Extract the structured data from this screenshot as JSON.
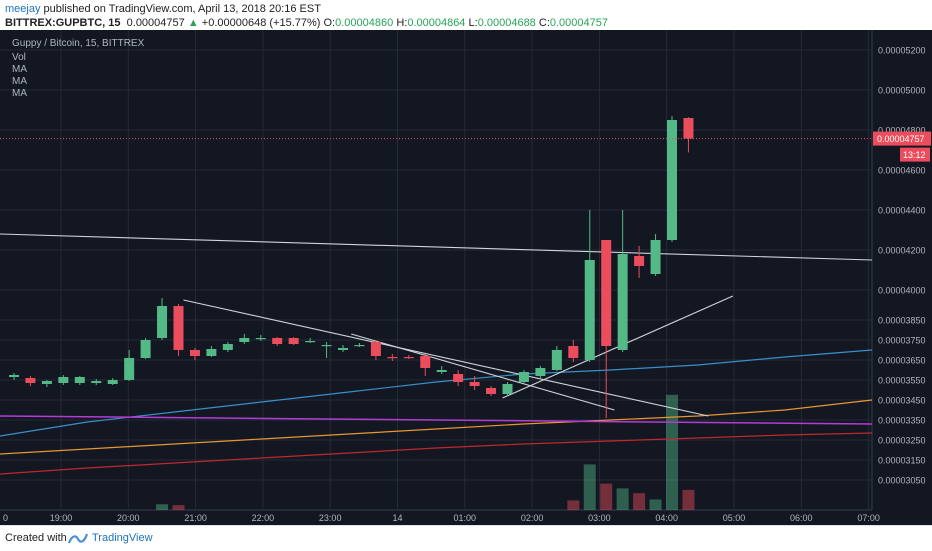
{
  "header": {
    "author": "meejay",
    "published_text": "published on TradingView.com, April 13, 2018 20:16 EST",
    "symbol": "BITTREX:GUPBTC, 15",
    "last": "0.00004757",
    "change": "+0.00000648 (+15.77%)",
    "o_label": "O:",
    "o_value": "0.00004860",
    "h_label": "H:",
    "h_value": "0.00004864",
    "l_label": "L:",
    "l_value": "0.00004688",
    "c_label": "C:",
    "c_value": "0.00004757"
  },
  "legend": {
    "title": "Guppy / Bitcoin, 15, BITTREX",
    "vol": "Vol",
    "ma1": "MA",
    "ma2": "MA",
    "ma3": "MA"
  },
  "footer": {
    "created": "Created with",
    "brand": "TradingView"
  },
  "colors": {
    "background": "#131722",
    "up": "#53b987",
    "down": "#eb4d5c",
    "grid": "#252a37",
    "trendline": "#d1d4dc",
    "ma_blue": "#3a8fc8",
    "ma_orange": "#e8962e",
    "ma_red": "#c0282d",
    "horizontal_purple": "#b63bd5"
  },
  "chart_data": {
    "type": "candlestick",
    "title": "Guppy / Bitcoin, 15, BITTREX",
    "price_label": "0.00004757",
    "countdown_label": "13:12",
    "ylim": [
      2.9e-05,
      5.28e-05
    ],
    "y_ticks": [
      "0.00005200",
      "0.00005000",
      "0.00004800",
      "0.00004600",
      "0.00004400",
      "0.00004200",
      "0.00004000",
      "0.00003850",
      "0.00003750",
      "0.00003650",
      "0.00003550",
      "0.00003450",
      "0.00003350",
      "0.00003250",
      "0.00003150",
      "0.00003050"
    ],
    "x_ticks": [
      "19:00",
      "20:00",
      "21:00",
      "22:00",
      "23:00",
      "14",
      "01:00",
      "02:00",
      "03:00",
      "04:00",
      "05:00",
      "06:00",
      "07:00"
    ],
    "x_edge_label": "0",
    "candles": [
      {
        "o": 3.565e-05,
        "h": 3.585e-05,
        "l": 3.55e-05,
        "c": 3.575e-05
      },
      {
        "o": 3.56e-05,
        "h": 3.57e-05,
        "l": 3.52e-05,
        "c": 3.535e-05
      },
      {
        "o": 3.53e-05,
        "h": 3.55e-05,
        "l": 3.515e-05,
        "c": 3.545e-05
      },
      {
        "o": 3.535e-05,
        "h": 3.575e-05,
        "l": 3.525e-05,
        "c": 3.565e-05
      },
      {
        "o": 3.535e-05,
        "h": 3.57e-05,
        "l": 3.525e-05,
        "c": 3.565e-05
      },
      {
        "o": 3.535e-05,
        "h": 3.555e-05,
        "l": 3.525e-05,
        "c": 3.545e-05
      },
      {
        "o": 3.53e-05,
        "h": 3.56e-05,
        "l": 3.525e-05,
        "c": 3.55e-05
      },
      {
        "o": 3.55e-05,
        "h": 3.7e-05,
        "l": 3.545e-05,
        "c": 3.66e-05
      },
      {
        "o": 3.66e-05,
        "h": 3.76e-05,
        "l": 3.655e-05,
        "c": 3.75e-05
      },
      {
        "o": 3.76e-05,
        "h": 3.96e-05,
        "l": 3.75e-05,
        "c": 3.92e-05
      },
      {
        "o": 3.92e-05,
        "h": 3.93e-05,
        "l": 3.67e-05,
        "c": 3.7e-05
      },
      {
        "o": 3.7e-05,
        "h": 3.71e-05,
        "l": 3.65e-05,
        "c": 3.67e-05
      },
      {
        "o": 3.67e-05,
        "h": 3.72e-05,
        "l": 3.665e-05,
        "c": 3.705e-05
      },
      {
        "o": 3.7e-05,
        "h": 3.74e-05,
        "l": 3.69e-05,
        "c": 3.73e-05
      },
      {
        "o": 3.74e-05,
        "h": 3.78e-05,
        "l": 3.73e-05,
        "c": 3.76e-05
      },
      {
        "o": 3.76e-05,
        "h": 3.775e-05,
        "l": 3.745e-05,
        "c": 3.76e-05
      },
      {
        "o": 3.76e-05,
        "h": 3.765e-05,
        "l": 3.72e-05,
        "c": 3.73e-05
      },
      {
        "o": 3.76e-05,
        "h": 3.765e-05,
        "l": 3.725e-05,
        "c": 3.73e-05
      },
      {
        "o": 3.74e-05,
        "h": 3.76e-05,
        "l": 3.735e-05,
        "c": 3.745e-05
      },
      {
        "o": 3.72e-05,
        "h": 3.74e-05,
        "l": 3.66e-05,
        "c": 3.725e-05
      },
      {
        "o": 3.7e-05,
        "h": 3.725e-05,
        "l": 3.69e-05,
        "c": 3.71e-05
      },
      {
        "o": 3.725e-05,
        "h": 3.735e-05,
        "l": 3.715e-05,
        "c": 3.725e-05
      },
      {
        "o": 3.74e-05,
        "h": 3.75e-05,
        "l": 3.65e-05,
        "c": 3.67e-05
      },
      {
        "o": 3.665e-05,
        "h": 3.68e-05,
        "l": 3.645e-05,
        "c": 3.66e-05
      },
      {
        "o": 3.665e-05,
        "h": 3.675e-05,
        "l": 3.655e-05,
        "c": 3.66e-05
      },
      {
        "o": 3.67e-05,
        "h": 3.68e-05,
        "l": 3.57e-05,
        "c": 3.61e-05
      },
      {
        "o": 3.59e-05,
        "h": 3.62e-05,
        "l": 3.58e-05,
        "c": 3.6e-05
      },
      {
        "o": 3.58e-05,
        "h": 3.6e-05,
        "l": 3.52e-05,
        "c": 3.54e-05
      },
      {
        "o": 3.54e-05,
        "h": 3.57e-05,
        "l": 3.5e-05,
        "c": 3.52e-05
      },
      {
        "o": 3.51e-05,
        "h": 3.52e-05,
        "l": 3.47e-05,
        "c": 3.48e-05
      },
      {
        "o": 3.48e-05,
        "h": 3.54e-05,
        "l": 3.47e-05,
        "c": 3.53e-05
      },
      {
        "o": 3.54e-05,
        "h": 3.6e-05,
        "l": 3.535e-05,
        "c": 3.59e-05
      },
      {
        "o": 3.57e-05,
        "h": 3.62e-05,
        "l": 3.56e-05,
        "c": 3.61e-05
      },
      {
        "o": 3.6e-05,
        "h": 3.72e-05,
        "l": 3.595e-05,
        "c": 3.7e-05
      },
      {
        "o": 3.72e-05,
        "h": 3.75e-05,
        "l": 3.64e-05,
        "c": 3.66e-05
      },
      {
        "o": 3.65e-05,
        "h": 4.4e-05,
        "l": 3.64e-05,
        "c": 4.15e-05
      },
      {
        "o": 4.25e-05,
        "h": 4.25e-05,
        "l": 3.36e-05,
        "c": 3.72e-05
      },
      {
        "o": 3.7e-05,
        "h": 4.4e-05,
        "l": 3.69e-05,
        "c": 4.18e-05
      },
      {
        "o": 4.17e-05,
        "h": 4.22e-05,
        "l": 4.06e-05,
        "c": 4.12e-05
      },
      {
        "o": 4.08e-05,
        "h": 4.28e-05,
        "l": 4.07e-05,
        "c": 4.25e-05
      },
      {
        "o": 4.25e-05,
        "h": 4.87e-05,
        "l": 4.24e-05,
        "c": 4.85e-05
      },
      {
        "o": 4.86e-05,
        "h": 4.864e-05,
        "l": 4.688e-05,
        "c": 4.757e-05
      }
    ],
    "volume": [
      0,
      0,
      0,
      0,
      0,
      0,
      0,
      0,
      0,
      0.12,
      0.1,
      0,
      0,
      0,
      0,
      0,
      0,
      0,
      0,
      0,
      0,
      0,
      0,
      0,
      0,
      0,
      0,
      0,
      0,
      0,
      0,
      0,
      0,
      0,
      0.2,
      0.95,
      0.55,
      0.45,
      0.35,
      0.22,
      2.4,
      0.42
    ],
    "moving_averages": [
      {
        "color": "#3a8fc8",
        "values": [
          3.27e-05,
          3.34e-05,
          3.39e-05,
          3.44e-05,
          3.49e-05,
          3.54e-05,
          3.58e-05,
          3.6e-05,
          3.625e-05,
          3.665e-05,
          3.7e-05
        ]
      },
      {
        "color": "#e8962e",
        "values": [
          3.18e-05,
          3.205e-05,
          3.23e-05,
          3.255e-05,
          3.28e-05,
          3.305e-05,
          3.33e-05,
          3.35e-05,
          3.37e-05,
          3.4e-05,
          3.45e-05
        ]
      },
      {
        "color": "#c0282d",
        "values": [
          3.08e-05,
          3.11e-05,
          3.135e-05,
          3.16e-05,
          3.185e-05,
          3.21e-05,
          3.23e-05,
          3.245e-05,
          3.26e-05,
          3.275e-05,
          3.285e-05
        ]
      }
    ]
  }
}
